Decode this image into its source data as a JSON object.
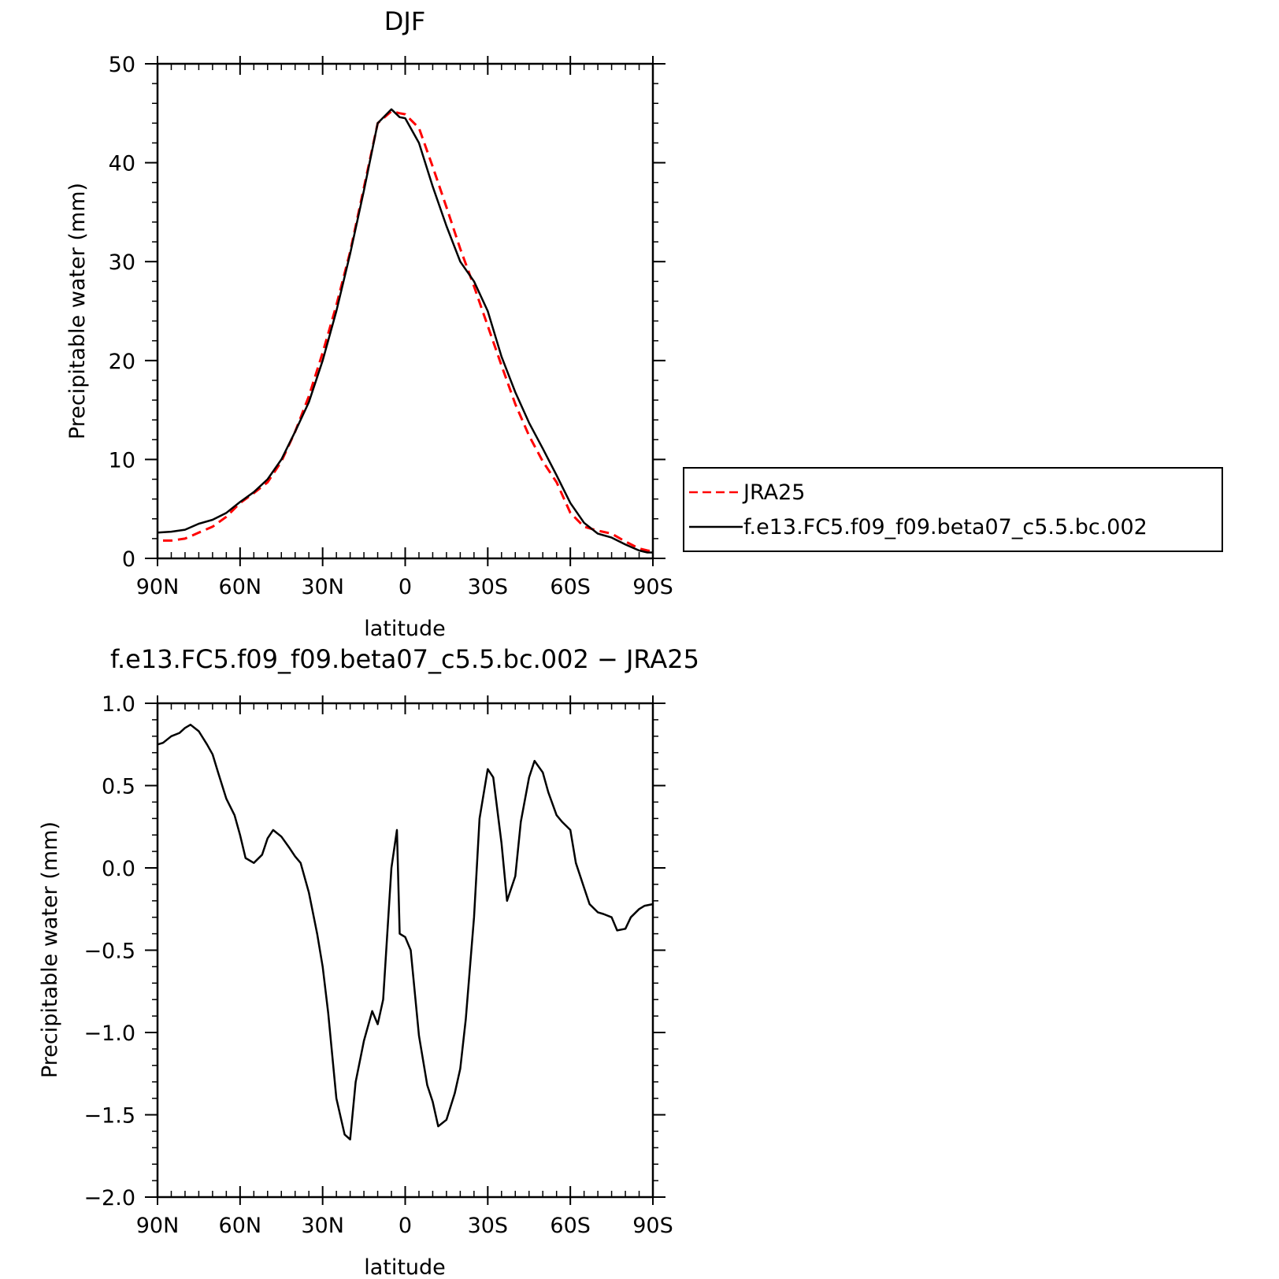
{
  "chart_data": [
    {
      "type": "line",
      "title": "DJF",
      "xlabel": "latitude",
      "ylabel": "Precipitable water (mm)",
      "xlim": [
        90,
        -90
      ],
      "ylim": [
        0,
        50
      ],
      "x_ticks": [
        90,
        60,
        30,
        0,
        -30,
        -60,
        -90
      ],
      "x_tick_labels": [
        "90N",
        "60N",
        "30N",
        "0",
        "30S",
        "60S",
        "90S"
      ],
      "y_ticks": [
        0,
        10,
        20,
        30,
        40,
        50
      ],
      "y_tick_labels": [
        "0",
        "10",
        "20",
        "30",
        "40",
        "50"
      ],
      "grid": false,
      "legend_position": "right",
      "series": [
        {
          "name": "JRA25",
          "color": "#ff0000",
          "dash": "dashed",
          "x": [
            88,
            85,
            80,
            75,
            70,
            65,
            60,
            55,
            50,
            45,
            40,
            35,
            30,
            25,
            20,
            15,
            10,
            5,
            2,
            0,
            -5,
            -10,
            -15,
            -20,
            -25,
            -30,
            -35,
            -40,
            -45,
            -50,
            -55,
            -60,
            -65,
            -70,
            -75,
            -80,
            -85,
            -88,
            -90
          ],
          "values": [
            1.8,
            1.8,
            2.0,
            2.6,
            3.2,
            4.2,
            5.6,
            6.6,
            7.7,
            9.8,
            12.8,
            16.4,
            20.8,
            25.6,
            31.0,
            37.5,
            44.0,
            45.2,
            45.0,
            44.9,
            43.5,
            39.6,
            35.5,
            31.3,
            27.5,
            23.5,
            19.5,
            15.6,
            12.4,
            9.8,
            7.7,
            4.6,
            3.2,
            2.8,
            2.5,
            1.7,
            1.0,
            0.8,
            0.7
          ]
        },
        {
          "name": "f.e13.FC5.f09_f09.beta07_c5.5.bc.002",
          "color": "#000000",
          "dash": "solid",
          "x": [
            90,
            85,
            80,
            75,
            70,
            65,
            60,
            55,
            50,
            45,
            40,
            35,
            30,
            25,
            20,
            15,
            10,
            5,
            2,
            0,
            -5,
            -10,
            -15,
            -20,
            -25,
            -30,
            -35,
            -40,
            -45,
            -50,
            -55,
            -60,
            -65,
            -70,
            -75,
            -80,
            -85,
            -88,
            -90
          ],
          "values": [
            2.6,
            2.7,
            2.9,
            3.5,
            3.9,
            4.6,
            5.7,
            6.7,
            8.0,
            10.0,
            12.8,
            15.8,
            20.0,
            25.0,
            30.8,
            37.2,
            44.0,
            45.4,
            44.6,
            44.5,
            42.0,
            37.6,
            33.6,
            30.0,
            28.0,
            25.0,
            20.4,
            16.8,
            13.7,
            11.1,
            8.4,
            5.6,
            3.6,
            2.5,
            2.1,
            1.4,
            0.8,
            0.6,
            0.6
          ]
        }
      ]
    },
    {
      "type": "line",
      "title": "f.e13.FC5.f09_f09.beta07_c5.5.bc.002 − JRA25",
      "xlabel": "latitude",
      "ylabel": "Precipitable water (mm)",
      "xlim": [
        90,
        -90
      ],
      "ylim": [
        -2.0,
        1.0
      ],
      "x_ticks": [
        90,
        60,
        30,
        0,
        -30,
        -60,
        -90
      ],
      "x_tick_labels": [
        "90N",
        "60N",
        "30N",
        "0",
        "30S",
        "60S",
        "90S"
      ],
      "y_ticks": [
        1.0,
        0.5,
        0.0,
        -0.5,
        -1.0,
        -1.5,
        -2.0
      ],
      "y_tick_labels": [
        "1.0",
        "0.5",
        "0.0",
        "−0.5",
        "−1.0",
        "−1.5",
        "−2.0"
      ],
      "grid": false,
      "series": [
        {
          "color": "#000000",
          "dash": "solid",
          "x": [
            90,
            88,
            85,
            82,
            80,
            78,
            75,
            72,
            70,
            68,
            65,
            62,
            60,
            58,
            55,
            52,
            50,
            48,
            45,
            42,
            40,
            38,
            35,
            32,
            30,
            28,
            25,
            22,
            20,
            18,
            15,
            12,
            10,
            8,
            5,
            3,
            2,
            0,
            -2,
            -5,
            -8,
            -10,
            -12,
            -15,
            -18,
            -20,
            -22,
            -25,
            -27,
            -30,
            -32,
            -35,
            -37,
            -40,
            -42,
            -45,
            -47,
            -50,
            -52,
            -55,
            -57,
            -60,
            -62,
            -65,
            -67,
            -70,
            -72,
            -75,
            -77,
            -80,
            -82,
            -85,
            -87,
            -90
          ],
          "values": [
            0.75,
            0.76,
            0.8,
            0.82,
            0.85,
            0.87,
            0.83,
            0.75,
            0.69,
            0.58,
            0.42,
            0.32,
            0.2,
            0.06,
            0.03,
            0.08,
            0.18,
            0.23,
            0.19,
            0.12,
            0.07,
            0.03,
            -0.15,
            -0.4,
            -0.6,
            -0.88,
            -1.4,
            -1.62,
            -1.65,
            -1.3,
            -1.05,
            -0.87,
            -0.95,
            -0.8,
            0.0,
            0.23,
            -0.4,
            -0.42,
            -0.5,
            -1.02,
            -1.32,
            -1.42,
            -1.57,
            -1.53,
            -1.37,
            -1.22,
            -0.92,
            -0.3,
            0.3,
            0.6,
            0.55,
            0.15,
            -0.2,
            -0.05,
            0.28,
            0.55,
            0.65,
            0.58,
            0.46,
            0.32,
            0.28,
            0.23,
            0.03,
            -0.12,
            -0.22,
            -0.27,
            -0.28,
            -0.3,
            -0.38,
            -0.37,
            -0.3,
            -0.25,
            -0.23,
            -0.22
          ]
        }
      ]
    }
  ]
}
